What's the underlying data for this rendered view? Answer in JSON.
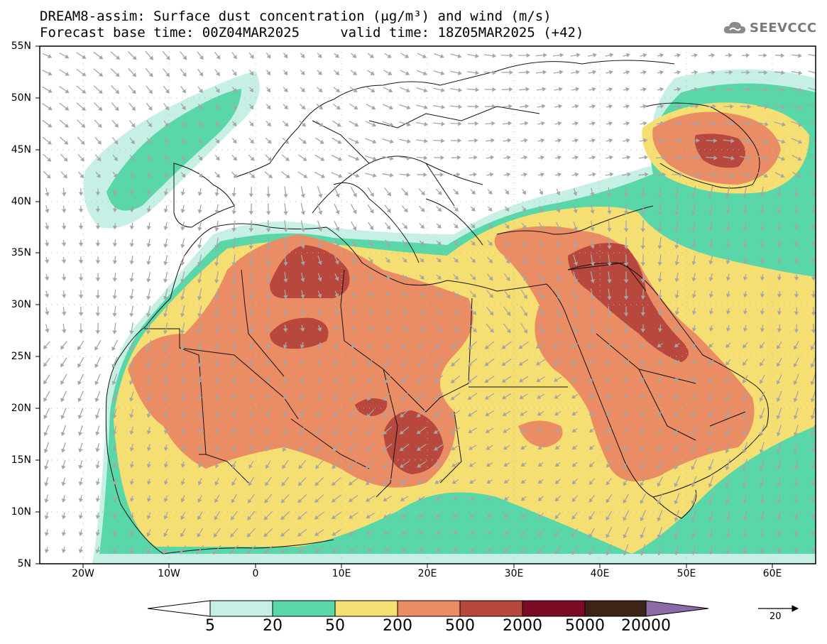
{
  "title_line1": "DREAM8-assim: Surface dust concentration (μg/m³) and wind (m/s)",
  "title_line2": "Forecast base time: 00Z04MAR2025     valid time: 18Z05MAR2025 (+42)",
  "logo_text": "SEEVCCC",
  "logo_icon": "cloud-icon",
  "lat_labels": [
    "55N",
    "50N",
    "45N",
    "40N",
    "35N",
    "30N",
    "25N",
    "20N",
    "15N",
    "10N",
    "5N"
  ],
  "lon_labels": [
    "20W",
    "10W",
    "0",
    "10E",
    "20E",
    "30E",
    "40E",
    "50E",
    "60E"
  ],
  "colorbar": {
    "labels": [
      "5",
      "20",
      "50",
      "200",
      "500",
      "2000",
      "5000",
      "20000"
    ],
    "colors": [
      "#ffffff",
      "#c6f0e6",
      "#5ad7a8",
      "#f6df72",
      "#ea8c64",
      "#b8483e",
      "#7d0a25",
      "#3d2416",
      "#8c6aa8"
    ]
  },
  "wind_reference": "20",
  "colors": {
    "level1": "#c6f0e6",
    "level2": "#5ad7a8",
    "level3": "#f6df72",
    "level4": "#ea8c64",
    "level5": "#b8483e",
    "arrow": "#a6a6a6"
  }
}
